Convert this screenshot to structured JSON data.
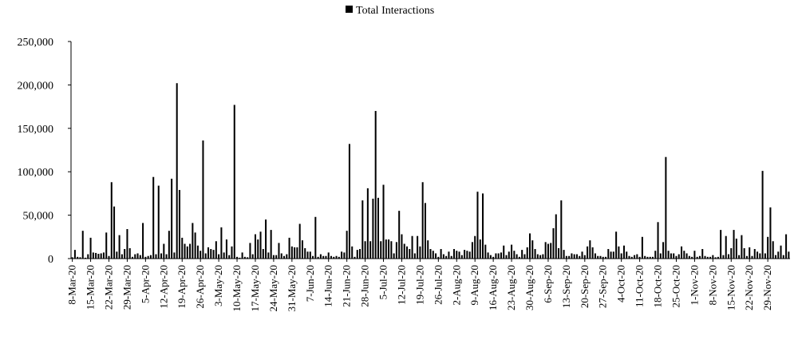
{
  "chart_data": {
    "type": "bar",
    "title": "",
    "xlabel": "",
    "ylabel": "",
    "ylim": [
      0,
      250000
    ],
    "y_ticks": [
      "0",
      "50,000",
      "100,000",
      "150,000",
      "200,000",
      "250,000"
    ],
    "grid": false,
    "legend_position": "top-center",
    "colors": {
      "bar": "#000000",
      "axis": "#000000"
    },
    "x_tick_labels": [
      "8-Mar-20",
      "15-Mar-20",
      "22-Mar-20",
      "29-Mar-20",
      "5-Apr-20",
      "12-Apr-20",
      "19-Apr-20",
      "26-Apr-20",
      "3-May-20",
      "10-May-20",
      "17-May-20",
      "24-May-20",
      "31-May-20",
      "7-Jun-20",
      "14-Jun-20",
      "21-Jun-20",
      "28-Jun-20",
      "5-Jul-20",
      "12-Jul-20",
      "19-Jul-20",
      "26-Jul-20",
      "2-Aug-20",
      "9-Aug-20",
      "16-Aug-20",
      "23-Aug-20",
      "30-Aug-20",
      "6-Sep-20",
      "13-Sep-20",
      "20-Sep-20",
      "27-Sep-20",
      "4-Oct-20",
      "11-Oct-20",
      "18-Oct-20",
      "25-Oct-20",
      "1-Nov-20",
      "8-Nov-20",
      "15-Nov-20",
      "22-Nov-20",
      "29-Nov-20"
    ],
    "series": [
      {
        "name": "Total Interactions",
        "values": [
          1500,
          10000,
          2000,
          1500,
          32000,
          1000,
          5000,
          24000,
          7000,
          6500,
          5500,
          6000,
          7000,
          30000,
          3000,
          88000,
          60000,
          8000,
          27000,
          5000,
          11000,
          34000,
          12000,
          2000,
          5000,
          6000,
          4000,
          41000,
          2000,
          3000,
          4000,
          94000,
          5000,
          84000,
          6000,
          17000,
          5000,
          32000,
          92000,
          7000,
          202000,
          79000,
          24000,
          17000,
          14000,
          17000,
          41000,
          30000,
          15000,
          9000,
          136000,
          6000,
          13000,
          11000,
          10000,
          20000,
          5000,
          36000,
          7000,
          22000,
          4000,
          14000,
          177000,
          2000,
          1000,
          7000,
          2000,
          1500,
          18000,
          5000,
          28000,
          22000,
          31000,
          11000,
          45000,
          7000,
          33000,
          4000,
          4000,
          18000,
          6000,
          3000,
          5000,
          24000,
          14000,
          13000,
          13000,
          40000,
          21000,
          12000,
          8000,
          8000,
          3000,
          48000,
          2000,
          5000,
          3000,
          3000,
          7000,
          3000,
          2000,
          3000,
          2000,
          8000,
          7000,
          32000,
          132000,
          14000,
          2000,
          10000,
          11000,
          67000,
          20000,
          81000,
          20000,
          69000,
          170000,
          70000,
          20000,
          85000,
          22000,
          22000,
          20000,
          6000,
          19000,
          55000,
          28000,
          17000,
          14000,
          11000,
          26000,
          6000,
          26000,
          14000,
          88000,
          64000,
          21000,
          11000,
          9000,
          6000,
          2000,
          11000,
          5000,
          3000,
          8000,
          3000,
          11000,
          9000,
          8000,
          4000,
          10000,
          9000,
          8000,
          19000,
          26000,
          77000,
          22000,
          75000,
          16000,
          7000,
          4000,
          2000,
          6000,
          6000,
          7000,
          15000,
          4000,
          8000,
          16000,
          9000,
          5000,
          2000,
          10000,
          5000,
          13000,
          29000,
          21000,
          11000,
          5000,
          4000,
          5000,
          19000,
          17000,
          18000,
          35000,
          51000,
          12000,
          67000,
          10000,
          3000,
          3000,
          6000,
          5000,
          5000,
          3000,
          8000,
          4000,
          14000,
          21000,
          13000,
          6000,
          3000,
          3000,
          2000,
          2000,
          11000,
          8000,
          8000,
          31000,
          14000,
          6000,
          15000,
          8000,
          3000,
          2000,
          4000,
          5000,
          2000,
          25000,
          3000,
          2000,
          2000,
          2000,
          9000,
          42000,
          6000,
          19000,
          117000,
          9000,
          6000,
          6000,
          3000,
          5000,
          14000,
          9000,
          6000,
          3000,
          2000,
          9000,
          2000,
          3000,
          11000,
          3000,
          2000,
          2000,
          4000,
          1500,
          2000,
          33000,
          4000,
          26000,
          5000,
          12000,
          33000,
          23000,
          4000,
          27000,
          12000,
          3000,
          13000,
          3000,
          11000,
          8000,
          6000,
          101000,
          6000,
          25000,
          59000,
          20000,
          4000,
          8000,
          15000,
          4000,
          28000,
          8000
        ]
      }
    ]
  }
}
